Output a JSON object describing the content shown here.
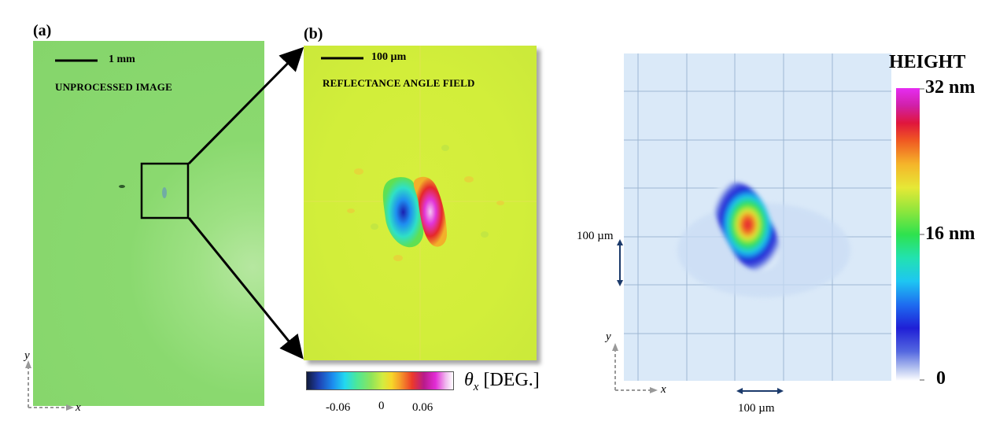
{
  "panel_a": {
    "label": "(a)",
    "scale_bar": "1 mm",
    "title": "UNPROCESSED IMAGE",
    "axis_x": "x",
    "axis_y": "y"
  },
  "panel_b": {
    "label": "(b)",
    "scale_bar": "100 µm",
    "title": "REFLECTANCE ANGLE FIELD",
    "colorbar_title_symbol": "θ",
    "colorbar_title_sub": "x",
    "colorbar_title_unit": "[DEG.]",
    "colorbar_ticks": [
      "-0.06",
      "0",
      "0.06"
    ]
  },
  "panel_c": {
    "colorbar_title": "HEIGHT",
    "colorbar_ticks": [
      "32 nm",
      "16 nm",
      "0"
    ],
    "dim_vertical": "100 µm",
    "dim_horizontal": "100 µm",
    "axis_x": "x",
    "axis_y": "y"
  },
  "colors": {
    "panel_a_bg": "#85d56b",
    "panel_b_bg": "#d2ee3a",
    "panel_c_bg": "#dae9f8",
    "dim_arrow": "#1b3a6b"
  }
}
